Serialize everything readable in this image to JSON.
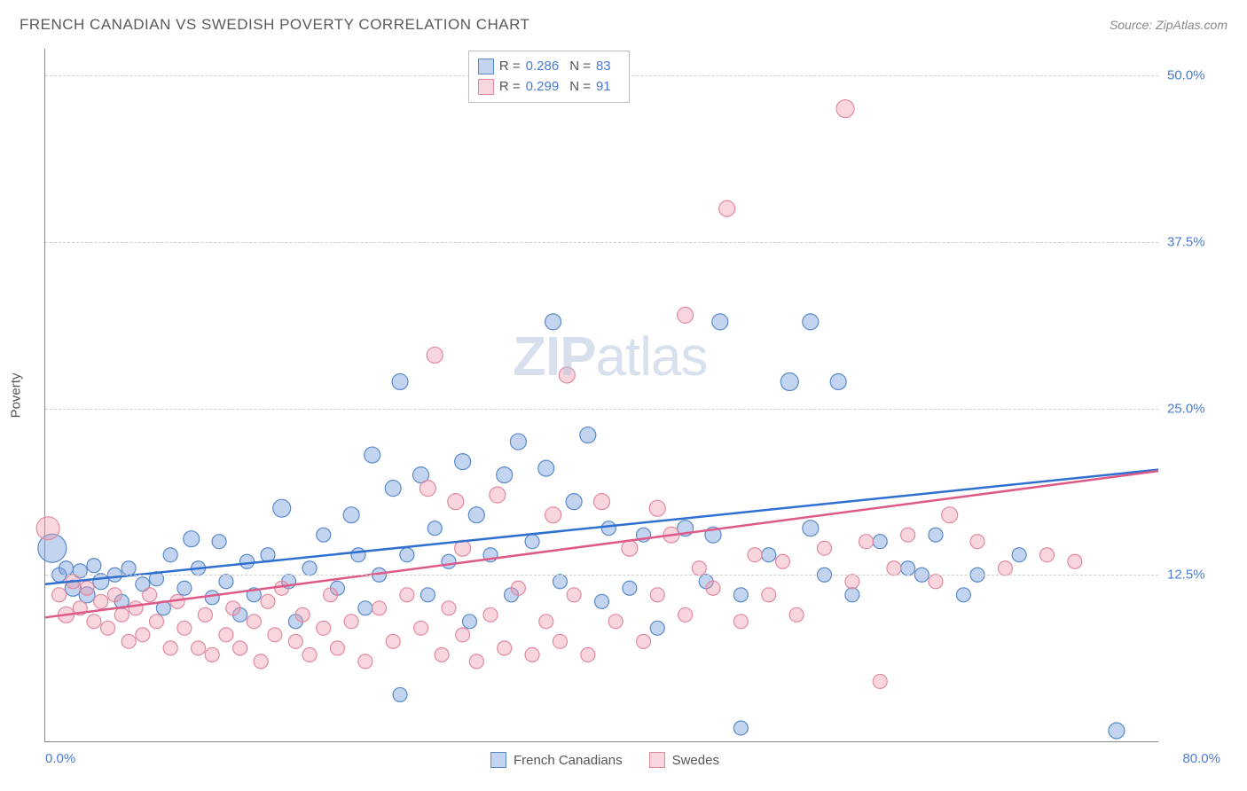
{
  "title": "FRENCH CANADIAN VS SWEDISH POVERTY CORRELATION CHART",
  "source": "Source: ZipAtlas.com",
  "ylabel": "Poverty",
  "watermark": {
    "bold": "ZIP",
    "rest": "atlas"
  },
  "chart": {
    "type": "scatter",
    "xlim": [
      0,
      80
    ],
    "ylim": [
      0,
      52
    ],
    "xticks": [
      {
        "v": 0,
        "label": "0.0%"
      },
      {
        "v": 80,
        "label": "80.0%"
      }
    ],
    "yticks": [
      {
        "v": 12.5,
        "label": "12.5%"
      },
      {
        "v": 25.0,
        "label": "25.0%"
      },
      {
        "v": 37.5,
        "label": "37.5%"
      },
      {
        "v": 50.0,
        "label": "50.0%"
      }
    ],
    "background_color": "#ffffff",
    "grid_color": "#d0d0d0",
    "axis_color": "#888888",
    "tick_label_color": "#4a7bd0",
    "series": [
      {
        "name": "French Canadians",
        "color_fill": "rgba(120,160,220,0.45)",
        "color_stroke": "#5a8ac8",
        "line_color": "#2f6fcf",
        "R": "0.286",
        "N": "83",
        "regression": {
          "x1": 0,
          "y1": 11.8,
          "x2": 80,
          "y2": 20.4
        },
        "points": [
          {
            "x": 0.5,
            "y": 14.5,
            "r": 16
          },
          {
            "x": 1,
            "y": 12.5,
            "r": 8
          },
          {
            "x": 1.5,
            "y": 13,
            "r": 8
          },
          {
            "x": 2,
            "y": 11.5,
            "r": 9
          },
          {
            "x": 2.5,
            "y": 12.8,
            "r": 8
          },
          {
            "x": 3,
            "y": 11,
            "r": 9
          },
          {
            "x": 3.5,
            "y": 13.2,
            "r": 8
          },
          {
            "x": 4,
            "y": 12,
            "r": 9
          },
          {
            "x": 5,
            "y": 12.5,
            "r": 8
          },
          {
            "x": 5.5,
            "y": 10.5,
            "r": 8
          },
          {
            "x": 6,
            "y": 13,
            "r": 8
          },
          {
            "x": 7,
            "y": 11.8,
            "r": 8
          },
          {
            "x": 8,
            "y": 12.2,
            "r": 8
          },
          {
            "x": 8.5,
            "y": 10,
            "r": 8
          },
          {
            "x": 9,
            "y": 14,
            "r": 8
          },
          {
            "x": 10,
            "y": 11.5,
            "r": 8
          },
          {
            "x": 10.5,
            "y": 15.2,
            "r": 9
          },
          {
            "x": 11,
            "y": 13,
            "r": 8
          },
          {
            "x": 12,
            "y": 10.8,
            "r": 8
          },
          {
            "x": 12.5,
            "y": 15,
            "r": 8
          },
          {
            "x": 13,
            "y": 12,
            "r": 8
          },
          {
            "x": 14,
            "y": 9.5,
            "r": 8
          },
          {
            "x": 14.5,
            "y": 13.5,
            "r": 8
          },
          {
            "x": 15,
            "y": 11,
            "r": 8
          },
          {
            "x": 16,
            "y": 14,
            "r": 8
          },
          {
            "x": 17,
            "y": 17.5,
            "r": 10
          },
          {
            "x": 17.5,
            "y": 12,
            "r": 8
          },
          {
            "x": 18,
            "y": 9,
            "r": 8
          },
          {
            "x": 19,
            "y": 13,
            "r": 8
          },
          {
            "x": 20,
            "y": 15.5,
            "r": 8
          },
          {
            "x": 21,
            "y": 11.5,
            "r": 8
          },
          {
            "x": 22,
            "y": 17,
            "r": 9
          },
          {
            "x": 22.5,
            "y": 14,
            "r": 8
          },
          {
            "x": 23,
            "y": 10,
            "r": 8
          },
          {
            "x": 23.5,
            "y": 21.5,
            "r": 9
          },
          {
            "x": 24,
            "y": 12.5,
            "r": 8
          },
          {
            "x": 25,
            "y": 19,
            "r": 9
          },
          {
            "x": 25.5,
            "y": 3.5,
            "r": 8
          },
          {
            "x": 25.5,
            "y": 27,
            "r": 9
          },
          {
            "x": 26,
            "y": 14,
            "r": 8
          },
          {
            "x": 27,
            "y": 20,
            "r": 9
          },
          {
            "x": 27.5,
            "y": 11,
            "r": 8
          },
          {
            "x": 28,
            "y": 16,
            "r": 8
          },
          {
            "x": 29,
            "y": 13.5,
            "r": 8
          },
          {
            "x": 30,
            "y": 21,
            "r": 9
          },
          {
            "x": 30.5,
            "y": 9,
            "r": 8
          },
          {
            "x": 31,
            "y": 17,
            "r": 9
          },
          {
            "x": 32,
            "y": 14,
            "r": 8
          },
          {
            "x": 33,
            "y": 20,
            "r": 9
          },
          {
            "x": 33.5,
            "y": 11,
            "r": 8
          },
          {
            "x": 34,
            "y": 22.5,
            "r": 9
          },
          {
            "x": 35,
            "y": 15,
            "r": 8
          },
          {
            "x": 36,
            "y": 20.5,
            "r": 9
          },
          {
            "x": 36.5,
            "y": 31.5,
            "r": 9
          },
          {
            "x": 37,
            "y": 12,
            "r": 8
          },
          {
            "x": 38,
            "y": 18,
            "r": 9
          },
          {
            "x": 39,
            "y": 23,
            "r": 9
          },
          {
            "x": 40,
            "y": 10.5,
            "r": 8
          },
          {
            "x": 40.5,
            "y": 16,
            "r": 8
          },
          {
            "x": 42,
            "y": 11.5,
            "r": 8
          },
          {
            "x": 43,
            "y": 15.5,
            "r": 8
          },
          {
            "x": 44,
            "y": 8.5,
            "r": 8
          },
          {
            "x": 46,
            "y": 16,
            "r": 9
          },
          {
            "x": 47.5,
            "y": 12,
            "r": 8
          },
          {
            "x": 48,
            "y": 15.5,
            "r": 9
          },
          {
            "x": 48.5,
            "y": 31.5,
            "r": 9
          },
          {
            "x": 50,
            "y": 1,
            "r": 8
          },
          {
            "x": 50,
            "y": 11,
            "r": 8
          },
          {
            "x": 52,
            "y": 14,
            "r": 8
          },
          {
            "x": 53.5,
            "y": 27,
            "r": 10
          },
          {
            "x": 55,
            "y": 16,
            "r": 9
          },
          {
            "x": 55,
            "y": 31.5,
            "r": 9
          },
          {
            "x": 56,
            "y": 12.5,
            "r": 8
          },
          {
            "x": 57,
            "y": 27,
            "r": 9
          },
          {
            "x": 58,
            "y": 11,
            "r": 8
          },
          {
            "x": 60,
            "y": 15,
            "r": 8
          },
          {
            "x": 62,
            "y": 13,
            "r": 8
          },
          {
            "x": 63,
            "y": 12.5,
            "r": 8
          },
          {
            "x": 64,
            "y": 15.5,
            "r": 8
          },
          {
            "x": 66,
            "y": 11,
            "r": 8
          },
          {
            "x": 67,
            "y": 12.5,
            "r": 8
          },
          {
            "x": 70,
            "y": 14,
            "r": 8
          },
          {
            "x": 77,
            "y": 0.8,
            "r": 9
          }
        ]
      },
      {
        "name": "Swedes",
        "color_fill": "rgba(240,150,170,0.40)",
        "color_stroke": "#e08aa0",
        "line_color": "#dd5a88",
        "R": "0.299",
        "N": "91",
        "regression": {
          "x1": 0,
          "y1": 9.3,
          "x2": 80,
          "y2": 20.3
        },
        "points": [
          {
            "x": 0.2,
            "y": 16,
            "r": 13
          },
          {
            "x": 1,
            "y": 11,
            "r": 8
          },
          {
            "x": 1.5,
            "y": 9.5,
            "r": 9
          },
          {
            "x": 2,
            "y": 12,
            "r": 8
          },
          {
            "x": 2.5,
            "y": 10,
            "r": 8
          },
          {
            "x": 3,
            "y": 11.5,
            "r": 8
          },
          {
            "x": 3.5,
            "y": 9,
            "r": 8
          },
          {
            "x": 4,
            "y": 10.5,
            "r": 8
          },
          {
            "x": 4.5,
            "y": 8.5,
            "r": 8
          },
          {
            "x": 5,
            "y": 11,
            "r": 8
          },
          {
            "x": 5.5,
            "y": 9.5,
            "r": 8
          },
          {
            "x": 6,
            "y": 7.5,
            "r": 8
          },
          {
            "x": 6.5,
            "y": 10,
            "r": 8
          },
          {
            "x": 7,
            "y": 8,
            "r": 8
          },
          {
            "x": 7.5,
            "y": 11,
            "r": 8
          },
          {
            "x": 8,
            "y": 9,
            "r": 8
          },
          {
            "x": 9,
            "y": 7,
            "r": 8
          },
          {
            "x": 9.5,
            "y": 10.5,
            "r": 8
          },
          {
            "x": 10,
            "y": 8.5,
            "r": 8
          },
          {
            "x": 11,
            "y": 7,
            "r": 8
          },
          {
            "x": 11.5,
            "y": 9.5,
            "r": 8
          },
          {
            "x": 12,
            "y": 6.5,
            "r": 8
          },
          {
            "x": 13,
            "y": 8,
            "r": 8
          },
          {
            "x": 13.5,
            "y": 10,
            "r": 8
          },
          {
            "x": 14,
            "y": 7,
            "r": 8
          },
          {
            "x": 15,
            "y": 9,
            "r": 8
          },
          {
            "x": 15.5,
            "y": 6,
            "r": 8
          },
          {
            "x": 16,
            "y": 10.5,
            "r": 8
          },
          {
            "x": 16.5,
            "y": 8,
            "r": 8
          },
          {
            "x": 17,
            "y": 11.5,
            "r": 8
          },
          {
            "x": 18,
            "y": 7.5,
            "r": 8
          },
          {
            "x": 18.5,
            "y": 9.5,
            "r": 8
          },
          {
            "x": 19,
            "y": 6.5,
            "r": 8
          },
          {
            "x": 20,
            "y": 8.5,
            "r": 8
          },
          {
            "x": 20.5,
            "y": 11,
            "r": 8
          },
          {
            "x": 21,
            "y": 7,
            "r": 8
          },
          {
            "x": 22,
            "y": 9,
            "r": 8
          },
          {
            "x": 23,
            "y": 6,
            "r": 8
          },
          {
            "x": 24,
            "y": 10,
            "r": 8
          },
          {
            "x": 25,
            "y": 7.5,
            "r": 8
          },
          {
            "x": 26,
            "y": 11,
            "r": 8
          },
          {
            "x": 27,
            "y": 8.5,
            "r": 8
          },
          {
            "x": 27.5,
            "y": 19,
            "r": 9
          },
          {
            "x": 28,
            "y": 29,
            "r": 9
          },
          {
            "x": 28.5,
            "y": 6.5,
            "r": 8
          },
          {
            "x": 29,
            "y": 10,
            "r": 8
          },
          {
            "x": 29.5,
            "y": 18,
            "r": 9
          },
          {
            "x": 30,
            "y": 8,
            "r": 8
          },
          {
            "x": 30,
            "y": 14.5,
            "r": 9
          },
          {
            "x": 31,
            "y": 6,
            "r": 8
          },
          {
            "x": 32,
            "y": 9.5,
            "r": 8
          },
          {
            "x": 32.5,
            "y": 18.5,
            "r": 9
          },
          {
            "x": 33,
            "y": 7,
            "r": 8
          },
          {
            "x": 34,
            "y": 11.5,
            "r": 8
          },
          {
            "x": 35,
            "y": 6.5,
            "r": 8
          },
          {
            "x": 36,
            "y": 9,
            "r": 8
          },
          {
            "x": 36.5,
            "y": 17,
            "r": 9
          },
          {
            "x": 37,
            "y": 7.5,
            "r": 8
          },
          {
            "x": 37.5,
            "y": 27.5,
            "r": 9
          },
          {
            "x": 38,
            "y": 11,
            "r": 8
          },
          {
            "x": 39,
            "y": 6.5,
            "r": 8
          },
          {
            "x": 40,
            "y": 18,
            "r": 9
          },
          {
            "x": 41,
            "y": 9,
            "r": 8
          },
          {
            "x": 42,
            "y": 14.5,
            "r": 9
          },
          {
            "x": 43,
            "y": 7.5,
            "r": 8
          },
          {
            "x": 44,
            "y": 11,
            "r": 8
          },
          {
            "x": 44,
            "y": 17.5,
            "r": 9
          },
          {
            "x": 45,
            "y": 15.5,
            "r": 9
          },
          {
            "x": 46,
            "y": 9.5,
            "r": 8
          },
          {
            "x": 46,
            "y": 32,
            "r": 9
          },
          {
            "x": 47,
            "y": 13,
            "r": 8
          },
          {
            "x": 48,
            "y": 11.5,
            "r": 8
          },
          {
            "x": 49,
            "y": 40,
            "r": 9
          },
          {
            "x": 50,
            "y": 9,
            "r": 8
          },
          {
            "x": 51,
            "y": 14,
            "r": 8
          },
          {
            "x": 52,
            "y": 11,
            "r": 8
          },
          {
            "x": 53,
            "y": 13.5,
            "r": 8
          },
          {
            "x": 54,
            "y": 9.5,
            "r": 8
          },
          {
            "x": 56,
            "y": 14.5,
            "r": 8
          },
          {
            "x": 57.5,
            "y": 47.5,
            "r": 10
          },
          {
            "x": 58,
            "y": 12,
            "r": 8
          },
          {
            "x": 59,
            "y": 15,
            "r": 8
          },
          {
            "x": 60,
            "y": 4.5,
            "r": 8
          },
          {
            "x": 61,
            "y": 13,
            "r": 8
          },
          {
            "x": 62,
            "y": 15.5,
            "r": 8
          },
          {
            "x": 64,
            "y": 12,
            "r": 8
          },
          {
            "x": 65,
            "y": 17,
            "r": 9
          },
          {
            "x": 67,
            "y": 15,
            "r": 8
          },
          {
            "x": 69,
            "y": 13,
            "r": 8
          },
          {
            "x": 72,
            "y": 14,
            "r": 8
          },
          {
            "x": 74,
            "y": 13.5,
            "r": 8
          }
        ]
      }
    ]
  }
}
